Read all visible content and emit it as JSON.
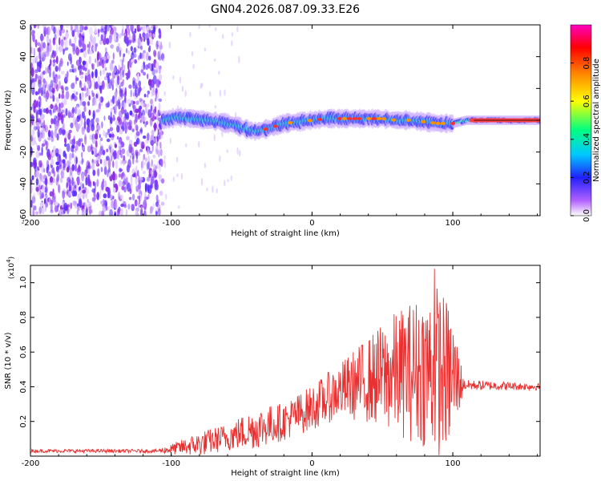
{
  "title": "GN04.2026.087.09.33.E26",
  "chart_data": [
    {
      "type": "heatmap",
      "title": "GN04.2026.087.09.33.E26",
      "xlabel": "Height of straight line (km)",
      "ylabel": "Frequency (Hz)",
      "xlim": [
        -200,
        162
      ],
      "ylim": [
        -60,
        60
      ],
      "x_ticks": [
        "-200",
        "-100",
        "0",
        "100"
      ],
      "y_ticks": [
        "60",
        "40",
        "20",
        "0",
        "-20",
        "-40",
        "-60"
      ],
      "colorbar": {
        "label": "Normalized spectral amplitude",
        "range": [
          0,
          1
        ],
        "ticks": [
          "0.0",
          "0.2",
          "0.4",
          "0.6",
          "0.8"
        ],
        "colors": [
          "#ffffff",
          "#a040ff",
          "#2020ff",
          "#00c8ff",
          "#00ff80",
          "#ffff00",
          "#ff8000",
          "#ff0000",
          "#ff00c0"
        ]
      },
      "noise_region_x": [
        -200,
        -106
      ],
      "ridge": [
        {
          "x": -106,
          "f": 0
        },
        {
          "x": -95,
          "f": 2
        },
        {
          "x": -85,
          "f": 1
        },
        {
          "x": -75,
          "f": 0
        },
        {
          "x": -65,
          "f": -1
        },
        {
          "x": -55,
          "f": -3
        },
        {
          "x": -45,
          "f": -6
        },
        {
          "x": -40,
          "f": -7
        },
        {
          "x": -35,
          "f": -6
        },
        {
          "x": -30,
          "f": -5
        },
        {
          "x": -20,
          "f": -2
        },
        {
          "x": -10,
          "f": -1
        },
        {
          "x": 0,
          "f": 0
        },
        {
          "x": 10,
          "f": 1
        },
        {
          "x": 20,
          "f": 1
        },
        {
          "x": 30,
          "f": 1
        },
        {
          "x": 40,
          "f": 1
        },
        {
          "x": 50,
          "f": 1
        },
        {
          "x": 60,
          "f": 0
        },
        {
          "x": 70,
          "f": 0
        },
        {
          "x": 80,
          "f": -1
        },
        {
          "x": 90,
          "f": -2
        },
        {
          "x": 100,
          "f": -2
        },
        {
          "x": 110,
          "f": 0
        },
        {
          "x": 120,
          "f": 0
        },
        {
          "x": 135,
          "f": 0
        },
        {
          "x": 150,
          "f": 0
        },
        {
          "x": 162,
          "f": 0
        }
      ]
    },
    {
      "type": "line",
      "xlabel": "Height of straight line (km)",
      "ylabel": "SNR (10 * v/v)",
      "y_multiplier": "(x10",
      "y_multiplier_exp": "4",
      "y_multiplier_close": ")",
      "xlim": [
        -200,
        162
      ],
      "ylim": [
        0,
        1.1
      ],
      "x_ticks": [
        "-200",
        "-100",
        "0",
        "100"
      ],
      "y_ticks": [
        "0.2",
        "0.4",
        "0.6",
        "0.8",
        "1.0"
      ],
      "series_color": "#e83030",
      "envelope": [
        {
          "x": -200,
          "base": 0.03,
          "amp": 0.01
        },
        {
          "x": -110,
          "base": 0.03,
          "amp": 0.01
        },
        {
          "x": -100,
          "base": 0.04,
          "amp": 0.03
        },
        {
          "x": -80,
          "base": 0.07,
          "amp": 0.07
        },
        {
          "x": -60,
          "base": 0.11,
          "amp": 0.08
        },
        {
          "x": -40,
          "base": 0.16,
          "amp": 0.12
        },
        {
          "x": -20,
          "base": 0.2,
          "amp": 0.11
        },
        {
          "x": 0,
          "base": 0.28,
          "amp": 0.13
        },
        {
          "x": 20,
          "base": 0.38,
          "amp": 0.16
        },
        {
          "x": 40,
          "base": 0.44,
          "amp": 0.25
        },
        {
          "x": 60,
          "base": 0.48,
          "amp": 0.36
        },
        {
          "x": 80,
          "base": 0.5,
          "amp": 0.45
        },
        {
          "x": 90,
          "base": 0.5,
          "amp": 0.5
        },
        {
          "x": 100,
          "base": 0.45,
          "amp": 0.38
        },
        {
          "x": 108,
          "base": 0.41,
          "amp": 0.03
        },
        {
          "x": 162,
          "base": 0.4,
          "amp": 0.02
        }
      ],
      "peak": {
        "x": 87,
        "y": 1.08
      }
    }
  ]
}
